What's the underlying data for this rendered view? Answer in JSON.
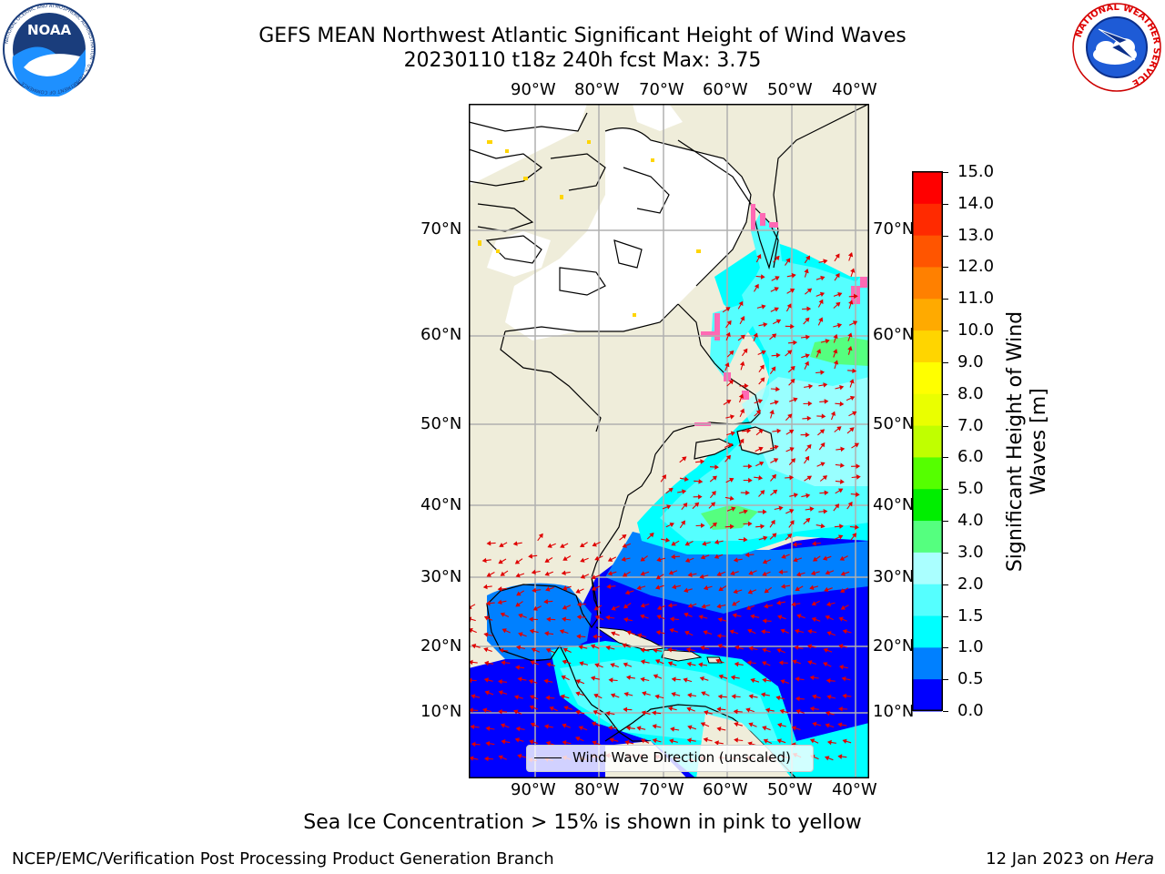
{
  "header": {
    "title_line1": "GEFS MEAN Northwest Atlantic Significant Height of Wind Waves",
    "title_line2": "20230110 t18z 240h fcst   Max: 3.75"
  },
  "logos": {
    "left": {
      "name": "noaa-logo",
      "text": "NOAA",
      "ring_text": "NATIONAL OCEANIC AND ATMOSPHERIC ADMINISTRATION · U.S. DEPARTMENT OF COMMERCE"
    },
    "right": {
      "name": "nws-logo",
      "ring_text": "NATIONAL WEATHER SERVICE"
    }
  },
  "map": {
    "lon_labels": [
      "90°W",
      "80°W",
      "70°W",
      "60°W",
      "50°W",
      "40°W"
    ],
    "lat_labels": [
      "70°N",
      "60°N",
      "50°N",
      "40°N",
      "30°N",
      "20°N",
      "10°N"
    ],
    "legend_label": "Wind Wave Direction (unscaled)",
    "colors": {
      "land": "#efedda",
      "ice_land": "#ffffff",
      "grid": "#b0b0b0",
      "arrow": "#e00000",
      "ice_edge": "#ff69b4"
    }
  },
  "colorbar": {
    "label": "Significant Height of Wind Waves [m]",
    "ticks": [
      "15.0",
      "14.0",
      "13.0",
      "12.0",
      "11.0",
      "10.0",
      "9.0",
      "8.0",
      "7.0",
      "6.0",
      "5.0",
      "4.0",
      "3.0",
      "2.0",
      "1.5",
      "1.0",
      "0.5",
      "0.0"
    ],
    "colors_top_to_bottom": [
      "#ff0000",
      "#ff2a00",
      "#ff5500",
      "#ff8000",
      "#ffaa00",
      "#ffd500",
      "#ffff00",
      "#eaff00",
      "#c0ff00",
      "#55ff00",
      "#00ee00",
      "#55ff7f",
      "#aaffff",
      "#55ffff",
      "#00ffff",
      "#0080ff",
      "#0000ff"
    ]
  },
  "footer": {
    "note": "Sea Ice Concentration > 15% is shown in pink to yellow",
    "credit_left": "NCEP/EMC/Verification Post Processing Product Generation Branch",
    "credit_right_prefix": "12 Jan 2023 on ",
    "credit_right_host": "Hera"
  }
}
